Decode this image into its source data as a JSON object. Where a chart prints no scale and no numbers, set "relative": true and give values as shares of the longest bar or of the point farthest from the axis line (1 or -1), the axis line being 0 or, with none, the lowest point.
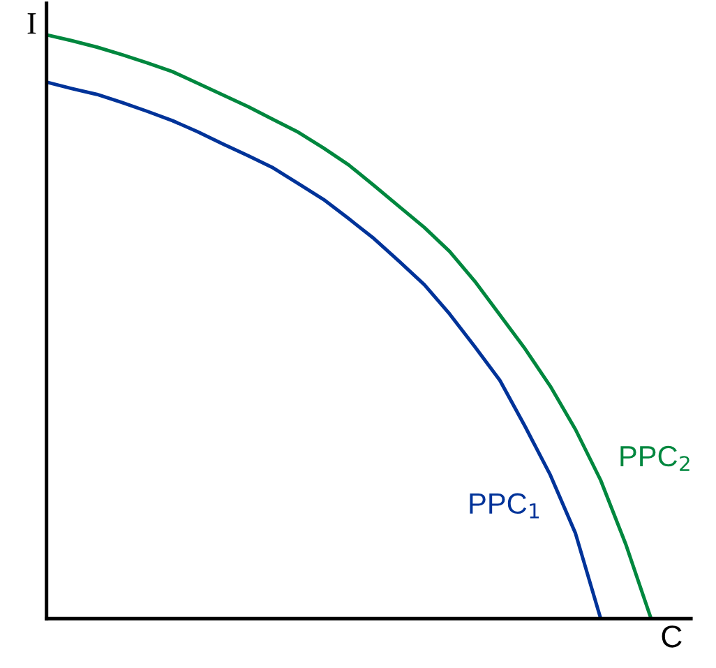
{
  "chart_data": {
    "type": "line",
    "relative": true,
    "xlabel": "C",
    "ylabel": "I",
    "marker": "none",
    "line_style": "solid",
    "categories": [
      null,
      null,
      null,
      null,
      null,
      null,
      null,
      null,
      null,
      null,
      null,
      null,
      null,
      null,
      null,
      null,
      null,
      null,
      null,
      null,
      null,
      null,
      null,
      null,
      null
    ],
    "series": [
      {
        "name": "PPC$_{1}$",
        "color": "#003399",
        "values": [
          0.919,
          0.908,
          0.898,
          0.884,
          0.869,
          0.853,
          0.834,
          0.813,
          0.793,
          0.772,
          0.745,
          0.718,
          0.685,
          0.651,
          0.612,
          0.572,
          0.522,
          0.466,
          0.408,
          0.329,
          0.246,
          0.146,
          0,
          null,
          null
        ]
      },
      {
        "name": "PPC$_{2}$",
        "color": "#00873e",
        "values": [
          1,
          0.99,
          0.979,
          0.966,
          0.952,
          0.937,
          0.917,
          0.897,
          0.877,
          0.855,
          0.833,
          0.806,
          0.777,
          0.742,
          0.706,
          0.67,
          0.629,
          0.578,
          0.52,
          0.462,
          0.398,
          0.324,
          0.237,
          0.127,
          0
        ]
      }
    ]
  }
}
